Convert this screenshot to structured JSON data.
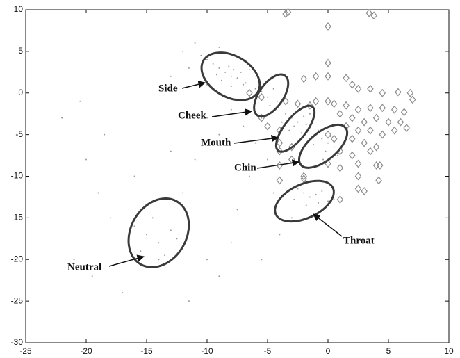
{
  "chart_data": {
    "type": "scatter",
    "xlim": [
      -25,
      10
    ],
    "ylim": [
      -30,
      10
    ],
    "xticks": [
      -25,
      -20,
      -15,
      -10,
      -5,
      0,
      5,
      10
    ],
    "yticks": [
      -30,
      -25,
      -20,
      -15,
      -10,
      -5,
      0,
      5,
      10
    ],
    "series": [
      {
        "marker": "dot",
        "color": "#9a9a9a",
        "x": [
          -9.5,
          -9,
          -8.5,
          -8,
          -7.5,
          -7,
          -8.8,
          -8.2,
          -7.8,
          -6.8,
          -10,
          -9.2,
          -8,
          -7.2,
          -6,
          -5.5,
          -5,
          -4.5,
          -4.2,
          -4.8,
          -12,
          -11,
          -10.5,
          -11.5,
          -13,
          -9,
          -7,
          -6.5,
          -12.5,
          -10,
          -3.5,
          -3,
          -2.5,
          -2,
          -2.8,
          -3.2,
          -1.8,
          -2.2,
          -3.8,
          -1.5,
          -1,
          -0.5,
          0,
          0.5,
          -0.2,
          -0.8,
          0.2,
          -1.2,
          0.8,
          -0.4,
          -2.5,
          -2,
          -1.5,
          -1,
          -0.5,
          0,
          0.5,
          -1.8,
          -0.8,
          -2.8,
          -8,
          -7,
          -6,
          -5,
          -9,
          -10,
          -6.5,
          -4.5,
          -7.5,
          -5.5,
          -16,
          -15,
          -14,
          -13,
          -15.5,
          -14.5,
          -13.5,
          -16.5,
          -12.5,
          -14,
          -20,
          -19,
          -18,
          -21,
          -17,
          -22,
          -18.5,
          -19.5,
          -16,
          -20.5,
          -11,
          -12,
          -10,
          -9,
          -8,
          -11.5,
          -13,
          -3,
          -4,
          -5.5
        ],
        "y": [
          3.5,
          3,
          2.5,
          2,
          1.8,
          1,
          1.5,
          3.2,
          2.8,
          1.2,
          4,
          2.2,
          0.8,
          2.5,
          0.5,
          0.2,
          -0.5,
          0.5,
          -1,
          -1.5,
          5,
          6,
          4.5,
          3,
          2,
          5.5,
          4,
          2.8,
          0.5,
          1,
          -2.5,
          -3,
          -3.5,
          -2.8,
          -4,
          -4.5,
          -3.8,
          -4.8,
          -3.5,
          -2.5,
          -5,
          -5.5,
          -6,
          -6.5,
          -7,
          -4.5,
          -5.2,
          -6.2,
          -7.5,
          -8,
          -11.5,
          -12,
          -12.5,
          -12.2,
          -11.8,
          -13,
          -12.8,
          -13.5,
          -13.2,
          -12.8,
          -2,
          -4,
          -6,
          -8,
          -5,
          -3,
          -10,
          -12,
          -14,
          -3,
          -16,
          -17,
          -18,
          -16.5,
          -19,
          -15,
          -19.5,
          -18,
          -17.5,
          -20,
          -8,
          -12,
          -15,
          -20,
          -24,
          -3,
          -5,
          -22,
          -10,
          -1,
          -8,
          -12,
          -20,
          -22,
          -18,
          -25,
          -7,
          -15,
          -17,
          -20
        ]
      },
      {
        "marker": "diamond",
        "color": "#8c8c8c",
        "x": [
          -3.5,
          -3.3,
          3.4,
          3.8,
          0,
          0,
          0,
          -1,
          -2,
          1.5,
          2,
          2.5,
          3.5,
          4.5,
          5.8,
          6.8,
          7,
          -1,
          0,
          0.5,
          1.5,
          2.5,
          3.5,
          4.5,
          5.5,
          6.3,
          -6.5,
          -5.5,
          -3.5,
          -2.5,
          -1.5,
          1,
          2,
          3,
          4,
          5,
          6,
          6.5,
          -5.5,
          -5,
          -4,
          1.5,
          2.5,
          3.5,
          4.5,
          5.5,
          0,
          0.5,
          2,
          3,
          4,
          -4,
          -3,
          1,
          2,
          3.5,
          -4,
          -3,
          -4,
          0,
          1,
          2.5,
          4,
          4.3,
          -4,
          -2,
          -2,
          2.5,
          4.2,
          2.5,
          3,
          1
        ],
        "y": [
          9.5,
          9.7,
          9.6,
          9.3,
          8,
          3.6,
          2,
          2,
          1.7,
          1.8,
          1,
          0.5,
          0.5,
          0,
          0.1,
          0,
          -0.8,
          -1,
          -1,
          -1.3,
          -1.5,
          -2,
          -1.8,
          -1.8,
          -2,
          -2.3,
          0,
          -0.5,
          -1,
          -1.3,
          -1.5,
          -2.5,
          -3,
          -3.5,
          -3,
          -3.5,
          -3.5,
          -4.2,
          -3,
          -4,
          -4.5,
          -4,
          -4.5,
          -4.5,
          -5,
          -4.5,
          -5,
          -5.5,
          -5.5,
          -6,
          -6.5,
          -6,
          -6.5,
          -7,
          -7.5,
          -7,
          -7,
          -8,
          -8.7,
          -8.5,
          -9,
          -8.5,
          -8.7,
          -8.7,
          -10.5,
          -10,
          -10.3,
          -10,
          -10.5,
          -11.5,
          -11.8,
          -12.8
        ]
      }
    ],
    "ellipses": [
      {
        "label": "Side",
        "x": -8.05,
        "y": 2.0,
        "rx": 2.6,
        "ry": 1.7,
        "angle": 30
      },
      {
        "label": "Cheek",
        "x": -4.7,
        "y": -0.3,
        "rx": 2.0,
        "ry": 1.0,
        "angle": -55
      },
      {
        "label": "Mouth",
        "x": -2.7,
        "y": -4.3,
        "rx": 2.3,
        "ry": 0.9,
        "angle": -52
      },
      {
        "label": "Chin",
        "x": -0.4,
        "y": -6.4,
        "rx": 2.4,
        "ry": 1.15,
        "angle": -40
      },
      {
        "label": "Throat",
        "x": -1.95,
        "y": -13.0,
        "rx": 2.6,
        "ry": 1.4,
        "angle": -25
      },
      {
        "label": "Neutral",
        "x": -14.0,
        "y": -16.8,
        "rx": 3.0,
        "ry": 2.3,
        "angle": -60
      }
    ]
  }
}
